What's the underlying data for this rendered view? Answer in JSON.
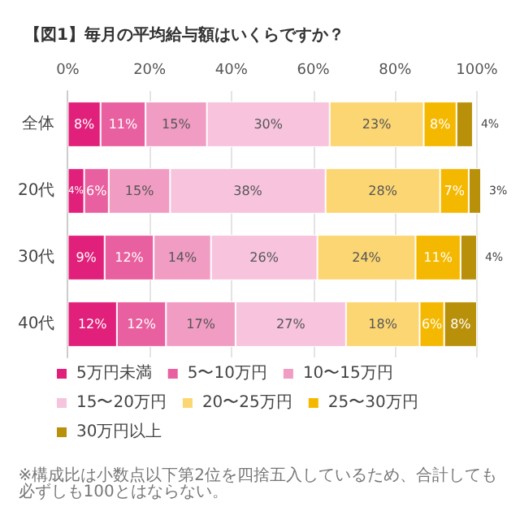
{
  "chart_data": {
    "type": "bar",
    "orientation": "horizontal",
    "stacked": true,
    "title": "【図1】毎月の平均給与額はいくらですか？",
    "categories": [
      "全体",
      "20代",
      "30代",
      "40代"
    ],
    "series": [
      {
        "name": "5万円未満",
        "color": "#e0207a",
        "values": [
          8,
          4,
          9,
          12
        ],
        "value_labels": [
          "8%",
          "4%",
          "9%",
          "12%"
        ]
      },
      {
        "name": "5〜10万円",
        "color": "#e8609f",
        "values": [
          11,
          6,
          12,
          12
        ],
        "value_labels": [
          "11%",
          "6%",
          "12%",
          "12%"
        ]
      },
      {
        "name": "10〜15万円",
        "color": "#f19cc3",
        "values": [
          15,
          15,
          14,
          17
        ],
        "value_labels": [
          "15%",
          "15%",
          "14%",
          "17%"
        ]
      },
      {
        "name": "15〜20万円",
        "color": "#f7c3dd",
        "values": [
          30,
          38,
          26,
          27
        ],
        "value_labels": [
          "30%",
          "38%",
          "26%",
          "27%"
        ]
      },
      {
        "name": "20〜25万円",
        "color": "#fbd672",
        "values": [
          23,
          28,
          24,
          18
        ],
        "value_labels": [
          "23%",
          "28%",
          "24%",
          "18%"
        ]
      },
      {
        "name": "25〜30万円",
        "color": "#f5b800",
        "values": [
          8,
          7,
          11,
          6
        ],
        "value_labels": [
          "8%",
          "7%",
          "11%",
          "6%"
        ]
      },
      {
        "name": "30万円以上",
        "color": "#b8900a",
        "values": [
          4,
          3,
          4,
          8
        ],
        "value_labels": [
          "4%",
          "3%",
          "4%",
          "8%"
        ]
      }
    ],
    "xlim": [
      0,
      101
    ],
    "xticks": [
      {
        "value": 0,
        "label": "0%"
      },
      {
        "value": 20,
        "label": "20%"
      },
      {
        "value": 40,
        "label": "40%"
      },
      {
        "value": 60,
        "label": "60%"
      },
      {
        "value": 80,
        "label": "80%"
      },
      {
        "value": 100,
        "label": "100%"
      }
    ],
    "grid": "x",
    "legend": "bottom",
    "annotations": [
      "※構成比は小数点以下第2位を四捨五入しているため、合計しても必ずしも100とはならない。"
    ]
  }
}
